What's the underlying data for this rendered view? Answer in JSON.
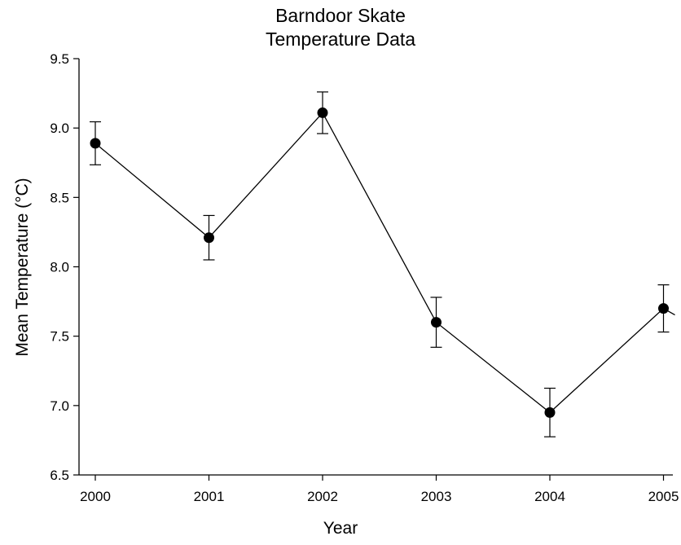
{
  "chart_data": {
    "type": "line",
    "title": [
      "Barndoor Skate",
      "Temperature Data"
    ],
    "xlabel": "Year",
    "ylabel": "Mean Temperature (°C)",
    "x": [
      2000,
      2001,
      2002,
      2003,
      2004,
      2005
    ],
    "x_tick_labels": [
      "2000",
      "2001",
      "2002",
      "2003",
      "2004",
      "2005"
    ],
    "ylim": [
      6.5,
      9.5
    ],
    "y_tick_labels": [
      "6.5",
      "7.0",
      "7.5",
      "8.0",
      "8.5",
      "9.0",
      "9.5"
    ],
    "y_ticks": [
      6.5,
      7.0,
      7.5,
      8.0,
      8.5,
      9.0,
      9.5
    ],
    "series": [
      {
        "values": [
          8.89,
          8.21,
          9.11,
          7.6,
          6.95,
          7.7
        ],
        "error": [
          0.155,
          0.16,
          0.15,
          0.18,
          0.175,
          0.17
        ],
        "marker": "filled-circle",
        "color": "#000000"
      }
    ],
    "grid": false,
    "legend": "none"
  }
}
